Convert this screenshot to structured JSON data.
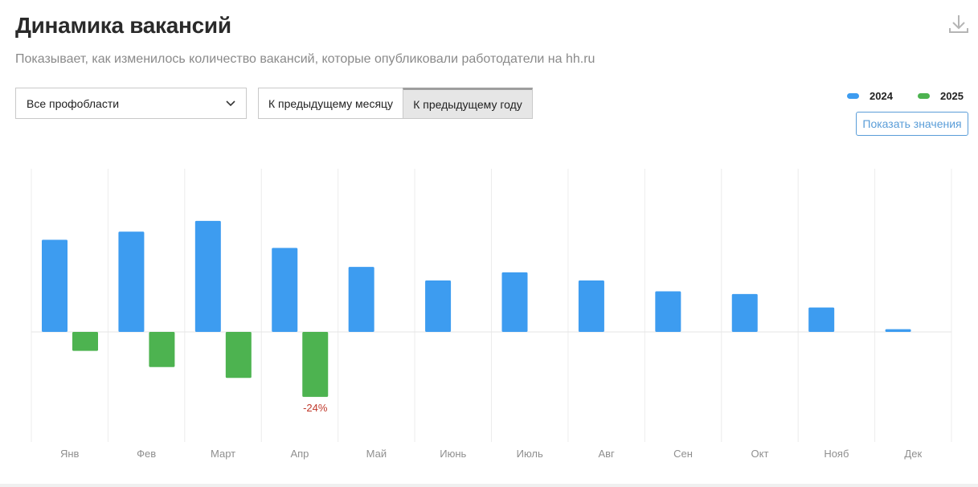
{
  "header": {
    "title": "Динамика вакансий",
    "subtitle": "Показывает, как изменилось количество вакансий, которые опубликовали работодатели на hh.ru"
  },
  "controls": {
    "area_select_value": "Все профобласти",
    "seg_month_label": "К предыдущему месяцу",
    "seg_year_label": "К предыдущему году",
    "show_values_label": "Показать значения"
  },
  "icons": {
    "download": "download-icon",
    "dropdown": "chevron-down-icon"
  },
  "colors": {
    "series_2024": "#3d9cf0",
    "series_2025": "#4db350",
    "negative_label": "#c0392b",
    "accent": "#5a9dd8"
  },
  "chart_data": {
    "type": "bar",
    "categories": [
      "Янв",
      "Фев",
      "Март",
      "Апр",
      "Май",
      "Июнь",
      "Июль",
      "Авг",
      "Сен",
      "Окт",
      "Нояб",
      "Дек"
    ],
    "series": [
      {
        "name": "2024",
        "values": [
          34,
          37,
          41,
          31,
          24,
          19,
          22,
          19,
          15,
          14,
          9,
          1
        ]
      },
      {
        "name": "2025",
        "values": [
          -7,
          -13,
          -17,
          -24,
          null,
          null,
          null,
          null,
          null,
          null,
          null,
          null
        ]
      }
    ],
    "annotations": [
      {
        "category": "Апр",
        "series": "2025",
        "text": "-24%"
      }
    ],
    "ylim": [
      -40,
      60
    ],
    "grid": "vertical",
    "legend": "top-right"
  }
}
